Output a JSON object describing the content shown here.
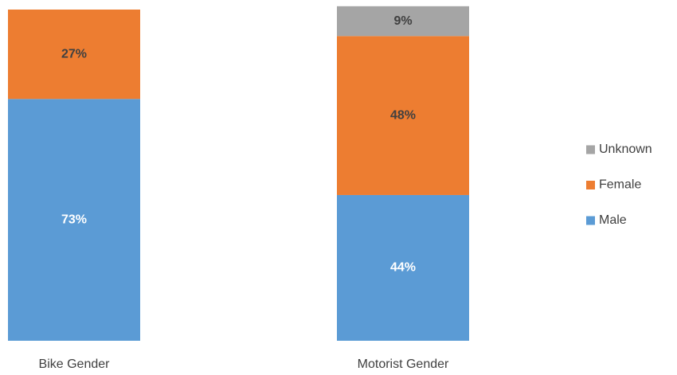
{
  "chart_data": {
    "type": "stacked_bar",
    "categories": [
      "Bike Gender",
      "Motorist Gender"
    ],
    "ylim": [
      0,
      100
    ],
    "series": [
      {
        "name": "Male",
        "color": "#5b9bd5",
        "label_color": "#ffffff",
        "values": [
          73,
          44
        ],
        "value_labels": [
          "73%",
          "44%"
        ]
      },
      {
        "name": "Female",
        "color": "#ed7d31",
        "label_color": "#404040",
        "values": [
          27,
          48
        ],
        "value_labels": [
          "27%",
          "48%"
        ]
      },
      {
        "name": "Unknown",
        "color": "#a5a5a5",
        "label_color": "#404040",
        "values": [
          null,
          9
        ],
        "value_labels": [
          null,
          "9%"
        ]
      }
    ],
    "legend": "right"
  }
}
